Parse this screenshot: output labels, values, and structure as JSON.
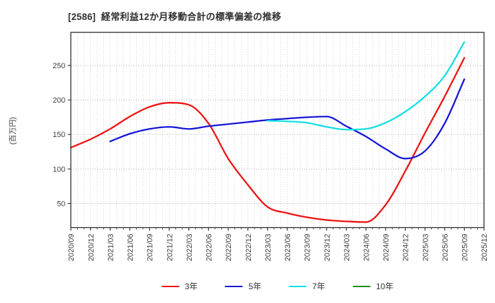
{
  "title": "[2586]  経常利益12か月移動合計の標準偏差の推移",
  "y_axis": {
    "label": "(百万円)",
    "ticks": [
      50,
      100,
      150,
      200,
      250
    ]
  },
  "x_axis": {
    "tick_labels": [
      "2020/09",
      "2020/12",
      "2021/03",
      "2021/06",
      "2021/09",
      "2021/12",
      "2022/03",
      "2022/06",
      "2022/09",
      "2022/12",
      "2023/03",
      "2023/06",
      "2023/09",
      "2023/12",
      "2024/03",
      "2024/06",
      "2024/09",
      "2024/12",
      "2025/03",
      "2025/06",
      "2025/09",
      "2025/12"
    ]
  },
  "legend": {
    "items": [
      {
        "label": "3年",
        "color": "#ee1111"
      },
      {
        "label": "5年",
        "color": "#1414d8"
      },
      {
        "label": "7年",
        "color": "#12dfe6"
      },
      {
        "label": "10年",
        "color": "#1c8c1c"
      }
    ]
  },
  "chart_data": {
    "type": "line",
    "title": "[2586]  経常利益12か月移動合計の標準偏差の推移",
    "xlabel": "",
    "ylabel": "(百万円)",
    "categories": [
      "2020/09",
      "2020/12",
      "2021/03",
      "2021/06",
      "2021/09",
      "2021/12",
      "2022/03",
      "2022/06",
      "2022/09",
      "2022/12",
      "2023/03",
      "2023/06",
      "2023/09",
      "2023/12",
      "2024/03",
      "2024/06",
      "2024/09",
      "2024/12",
      "2025/03",
      "2025/06",
      "2025/09",
      "2025/12"
    ],
    "series": [
      {
        "name": "3年",
        "color": "#ee1111",
        "values": [
          131,
          143,
          158,
          176,
          190,
          196,
          193,
          166,
          115,
          77,
          45,
          36,
          30,
          26,
          24,
          23,
          48,
          97,
          152,
          205,
          261,
          null
        ]
      },
      {
        "name": "5年",
        "color": "#1414d8",
        "values": [
          null,
          null,
          140,
          151,
          158,
          161,
          158,
          162,
          165,
          168,
          171,
          173,
          175,
          176,
          162,
          147,
          129,
          115,
          126,
          166,
          230,
          null
        ]
      },
      {
        "name": "7年",
        "color": "#12dfe6",
        "values": [
          null,
          null,
          null,
          null,
          null,
          null,
          null,
          null,
          null,
          null,
          170,
          169,
          167,
          161,
          157,
          158,
          167,
          183,
          205,
          235,
          284,
          null
        ]
      },
      {
        "name": "10年",
        "color": "#1c8c1c",
        "values": [
          null,
          null,
          null,
          null,
          null,
          null,
          null,
          null,
          null,
          null,
          null,
          null,
          null,
          null,
          null,
          null,
          null,
          null,
          null,
          null,
          null,
          null
        ]
      }
    ],
    "ylim": [
      15,
      298
    ],
    "y_ticks": [
      50,
      100,
      150,
      200,
      250
    ],
    "grid": true,
    "x_tick_rotation": 90,
    "minor_x_gridlines_per_quarter": 3,
    "legend_position": "bottom"
  },
  "style_colors": {
    "axis": "#2b2b2b",
    "tick_label": "#3d3d3d",
    "grid_vertical": "#cfcfcf",
    "grid_horizontal": "#a8a8a8",
    "background": "#ffffff"
  }
}
